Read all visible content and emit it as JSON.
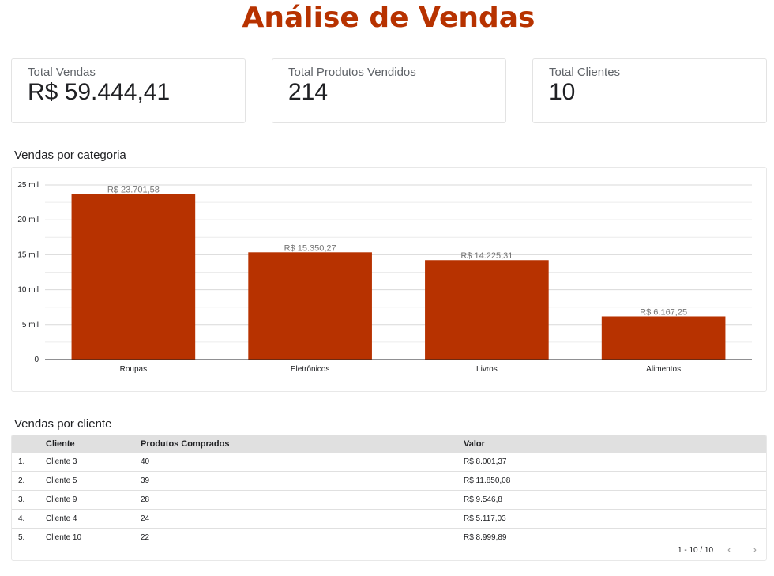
{
  "page": {
    "title": "Análise de Vendas",
    "accent_color": "#b73200"
  },
  "kpis": [
    {
      "label": "Total Vendas",
      "value": "R$ 59.444,41"
    },
    {
      "label": "Total Produtos Vendidos",
      "value": "214"
    },
    {
      "label": "Total Clientes",
      "value": "10"
    }
  ],
  "chart_section": {
    "title": "Vendas por categoria"
  },
  "chart_data": {
    "type": "bar",
    "title": "Vendas por categoria",
    "categories": [
      "Roupas",
      "Eletrônicos",
      "Livros",
      "Alimentos"
    ],
    "values": [
      23701.58,
      15350.27,
      14225.31,
      6167.25
    ],
    "value_labels": [
      "R$ 23.701,58",
      "R$ 15.350,27",
      "R$ 14.225,31",
      "R$ 6.167,25"
    ],
    "yticks": [
      0,
      5000,
      10000,
      15000,
      20000,
      25000
    ],
    "ytick_labels": [
      "0",
      "5 mil",
      "10 mil",
      "15 mil",
      "20 mil",
      "25 mil"
    ],
    "ylim": [
      0,
      25000
    ],
    "bar_color": "#b73200",
    "grid": true,
    "legend": "none"
  },
  "table_section": {
    "title": "Vendas por cliente"
  },
  "table": {
    "headers": [
      "Cliente",
      "Produtos Comprados",
      "Valor"
    ],
    "rows": [
      {
        "index": "1.",
        "cliente": "Cliente 3",
        "produtos": "40",
        "valor": "R$ 8.001,37"
      },
      {
        "index": "2.",
        "cliente": "Cliente 5",
        "produtos": "39",
        "valor": "R$ 11.850,08"
      },
      {
        "index": "3.",
        "cliente": "Cliente 9",
        "produtos": "28",
        "valor": "R$ 9.546,8"
      },
      {
        "index": "4.",
        "cliente": "Cliente 4",
        "produtos": "24",
        "valor": "R$ 5.117,03"
      },
      {
        "index": "5.",
        "cliente": "Cliente 10",
        "produtos": "22",
        "valor": "R$ 8.999,89"
      }
    ],
    "pagination": "1 - 10 / 10",
    "prev_icon": "chevron-left-icon",
    "next_icon": "chevron-right-icon"
  }
}
